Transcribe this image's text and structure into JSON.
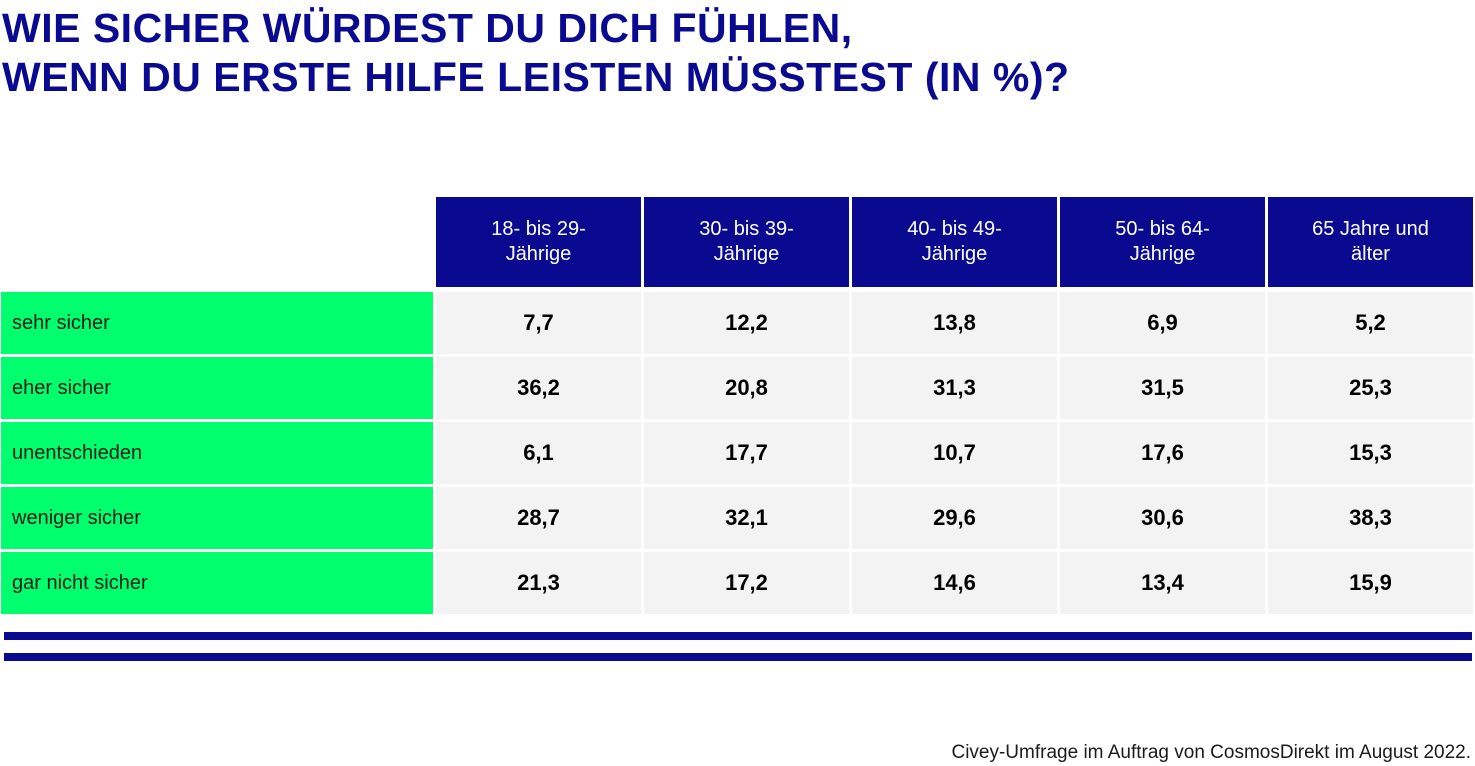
{
  "title": {
    "line1": "WIE SICHER WÜRDEST DU DICH FÜHLEN,",
    "line2": "WENN DU ERSTE HILFE LEISTEN MÜSSTEST (IN %)?"
  },
  "colors": {
    "header_bg": "#0a0a91",
    "row_label_bg": "#00ff6c",
    "value_bg": "#f3f3f3",
    "title": "#0a0a91"
  },
  "chart_data": {
    "type": "table",
    "title": "WIE SICHER WÜRDEST DU DICH FÜHLEN, WENN DU ERSTE HILFE LEISTEN MÜSSTEST (IN %)?",
    "columns": [
      "18- bis 29-Jährige",
      "30- bis 39-Jährige",
      "40- bis 49-Jährige",
      "50- bis 64-Jährige",
      "65 Jahre und älter"
    ],
    "rows": [
      "sehr sicher",
      "eher sicher",
      "unentschieden",
      "weniger sicher",
      "gar nicht sicher"
    ],
    "values": [
      [
        "7,7",
        "12,2",
        "13,8",
        "6,9",
        "5,2"
      ],
      [
        "36,2",
        "20,8",
        "31,3",
        "31,5",
        "25,3"
      ],
      [
        "6,1",
        "17,7",
        "10,7",
        "17,6",
        "15,3"
      ],
      [
        "28,7",
        "32,1",
        "29,6",
        "30,6",
        "38,3"
      ],
      [
        "21,3",
        "17,2",
        "14,6",
        "13,4",
        "15,9"
      ]
    ]
  },
  "footer": "Civey-Umfrage im Auftrag von CosmosDirekt im August 2022."
}
